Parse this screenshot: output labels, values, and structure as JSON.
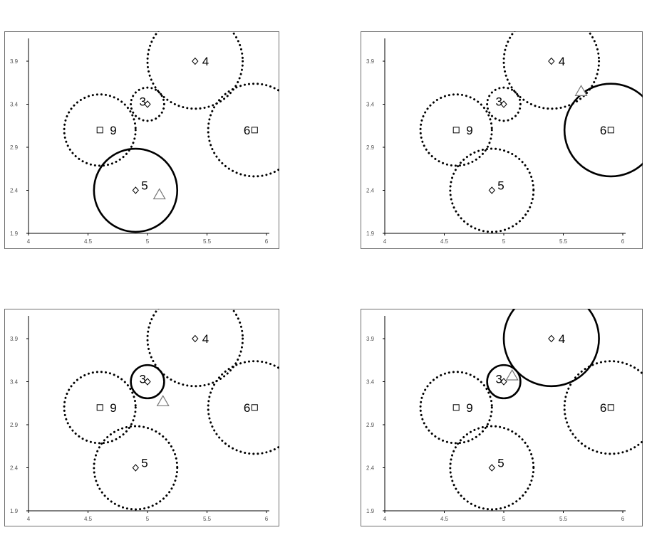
{
  "chart_data": [
    {
      "type": "scatter",
      "xlim": [
        4,
        6.0
      ],
      "ylim": [
        1.9,
        4.3
      ],
      "xticks": [
        "4",
        "4.5",
        "5",
        "5.5",
        "6"
      ],
      "yticks": [
        "1.9",
        "2.4",
        "2.9",
        "3.4",
        "3.9"
      ],
      "points": [
        {
          "label": "4",
          "x": 5.4,
          "y": 3.9,
          "marker": "diamond"
        },
        {
          "label": "3",
          "x": 5.0,
          "y": 3.4,
          "marker": "diamond"
        },
        {
          "label": "9",
          "x": 4.6,
          "y": 3.1,
          "marker": "square"
        },
        {
          "label": "6",
          "x": 5.9,
          "y": 3.1,
          "marker": "square"
        },
        {
          "label": "5",
          "x": 4.9,
          "y": 2.4,
          "marker": "diamond"
        }
      ],
      "circles": [
        {
          "cx": 5.4,
          "cy": 3.9,
          "r": 0.4,
          "style": "dotted"
        },
        {
          "cx": 5.0,
          "cy": 3.4,
          "r": 0.14,
          "style": "dotted"
        },
        {
          "cx": 4.6,
          "cy": 3.1,
          "r": 0.3,
          "style": "dotted"
        },
        {
          "cx": 5.9,
          "cy": 3.1,
          "r": 0.39,
          "style": "dotted"
        },
        {
          "cx": 4.9,
          "cy": 2.4,
          "r": 0.35,
          "style": "solid"
        }
      ],
      "query": {
        "x": 5.1,
        "y": 2.35
      }
    },
    {
      "type": "scatter",
      "xlim": [
        4,
        6.0
      ],
      "ylim": [
        1.9,
        4.3
      ],
      "xticks": [
        "4",
        "4.5",
        "5",
        "5.5",
        "6"
      ],
      "yticks": [
        "1.9",
        "2.4",
        "2.9",
        "3.4",
        "3.9"
      ],
      "points": [
        {
          "label": "4",
          "x": 5.4,
          "y": 3.9,
          "marker": "diamond"
        },
        {
          "label": "3",
          "x": 5.0,
          "y": 3.4,
          "marker": "diamond"
        },
        {
          "label": "9",
          "x": 4.6,
          "y": 3.1,
          "marker": "square"
        },
        {
          "label": "6",
          "x": 5.9,
          "y": 3.1,
          "marker": "square"
        },
        {
          "label": "5",
          "x": 4.9,
          "y": 2.4,
          "marker": "diamond"
        }
      ],
      "circles": [
        {
          "cx": 5.4,
          "cy": 3.9,
          "r": 0.4,
          "style": "dotted"
        },
        {
          "cx": 5.0,
          "cy": 3.4,
          "r": 0.14,
          "style": "dotted"
        },
        {
          "cx": 4.6,
          "cy": 3.1,
          "r": 0.3,
          "style": "dotted"
        },
        {
          "cx": 5.9,
          "cy": 3.1,
          "r": 0.39,
          "style": "solid"
        },
        {
          "cx": 4.9,
          "cy": 2.4,
          "r": 0.35,
          "style": "dotted"
        }
      ],
      "query": {
        "x": 5.65,
        "y": 3.55
      }
    },
    {
      "type": "scatter",
      "xlim": [
        4,
        6.0
      ],
      "ylim": [
        1.9,
        4.3
      ],
      "xticks": [
        "4",
        "4.5",
        "5",
        "5.5",
        "6"
      ],
      "yticks": [
        "1.9",
        "2.4",
        "2.9",
        "3.4",
        "3.9"
      ],
      "points": [
        {
          "label": "4",
          "x": 5.4,
          "y": 3.9,
          "marker": "diamond"
        },
        {
          "label": "3",
          "x": 5.0,
          "y": 3.4,
          "marker": "diamond"
        },
        {
          "label": "9",
          "x": 4.6,
          "y": 3.1,
          "marker": "square"
        },
        {
          "label": "6",
          "x": 5.9,
          "y": 3.1,
          "marker": "square"
        },
        {
          "label": "5",
          "x": 4.9,
          "y": 2.4,
          "marker": "diamond"
        }
      ],
      "circles": [
        {
          "cx": 5.4,
          "cy": 3.9,
          "r": 0.4,
          "style": "dotted"
        },
        {
          "cx": 5.0,
          "cy": 3.4,
          "r": 0.14,
          "style": "solid"
        },
        {
          "cx": 4.6,
          "cy": 3.1,
          "r": 0.3,
          "style": "dotted"
        },
        {
          "cx": 5.9,
          "cy": 3.1,
          "r": 0.39,
          "style": "dotted"
        },
        {
          "cx": 4.9,
          "cy": 2.4,
          "r": 0.35,
          "style": "dotted"
        }
      ],
      "query": {
        "x": 5.13,
        "y": 3.17
      }
    },
    {
      "type": "scatter",
      "xlim": [
        4,
        6.0
      ],
      "ylim": [
        1.9,
        4.3
      ],
      "xticks": [
        "4",
        "4.5",
        "5",
        "5.5",
        "6"
      ],
      "yticks": [
        "1.9",
        "2.4",
        "2.9",
        "3.4",
        "3.9"
      ],
      "points": [
        {
          "label": "4",
          "x": 5.4,
          "y": 3.9,
          "marker": "diamond"
        },
        {
          "label": "3",
          "x": 5.0,
          "y": 3.4,
          "marker": "diamond"
        },
        {
          "label": "9",
          "x": 4.6,
          "y": 3.1,
          "marker": "square"
        },
        {
          "label": "6",
          "x": 5.9,
          "y": 3.1,
          "marker": "square"
        },
        {
          "label": "5",
          "x": 4.9,
          "y": 2.4,
          "marker": "diamond"
        }
      ],
      "circles": [
        {
          "cx": 5.4,
          "cy": 3.9,
          "r": 0.4,
          "style": "solid"
        },
        {
          "cx": 5.0,
          "cy": 3.4,
          "r": 0.14,
          "style": "solid"
        },
        {
          "cx": 4.6,
          "cy": 3.1,
          "r": 0.3,
          "style": "dotted"
        },
        {
          "cx": 5.9,
          "cy": 3.1,
          "r": 0.39,
          "style": "dotted"
        },
        {
          "cx": 4.9,
          "cy": 2.4,
          "r": 0.35,
          "style": "dotted"
        }
      ],
      "query": {
        "x": 5.07,
        "y": 3.47
      }
    }
  ]
}
